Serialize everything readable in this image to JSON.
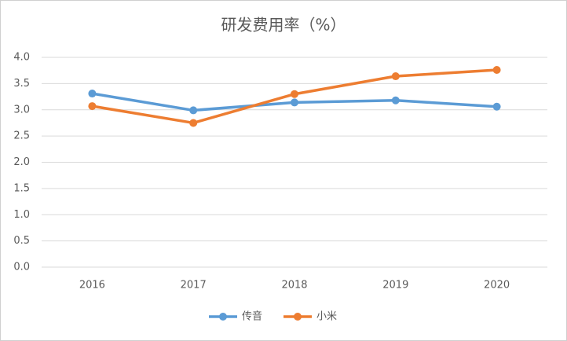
{
  "chart_data": {
    "type": "line",
    "title": "研发费用率（%）",
    "categories": [
      "2016",
      "2017",
      "2018",
      "2019",
      "2020"
    ],
    "series": [
      {
        "name": "传音",
        "color": "#5b9bd5",
        "values": [
          3.31,
          2.99,
          3.14,
          3.18,
          3.06
        ]
      },
      {
        "name": "小米",
        "color": "#ed7d31",
        "values": [
          3.07,
          2.75,
          3.3,
          3.64,
          3.76
        ]
      }
    ],
    "ylim": [
      0,
      4
    ],
    "yticks": [
      {
        "value": 0,
        "label": "0.0"
      },
      0.5,
      {
        "value": 1,
        "label": "1.0"
      },
      1.5,
      {
        "value": 2,
        "label": "2.0"
      },
      2.5,
      {
        "value": 3,
        "label": "3.0"
      },
      3.5,
      {
        "value": 4,
        "label": "4.0"
      }
    ],
    "grid": true,
    "legend": "bottom"
  }
}
